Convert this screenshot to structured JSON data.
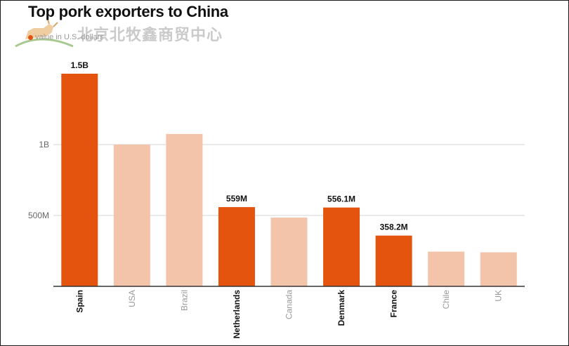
{
  "colors": {
    "highlight": "#e5540f",
    "muted": "#f4c4aa",
    "grid": "#d4d4d4",
    "axis": "#333333",
    "muted_label": "#999999",
    "strong_label": "#111111"
  },
  "watermark": {
    "text": "北京北牧鑫商贸中心"
  },
  "chart_data": {
    "type": "bar",
    "title": "Top pork exporters to China",
    "legend": "value in U.S. dollars",
    "categories": [
      "Spain",
      "USA",
      "Brazil",
      "Netherlands",
      "Canada",
      "Denmark",
      "France",
      "Chile",
      "UK"
    ],
    "values": [
      1500000000,
      1000000000,
      1075000000,
      559000000,
      485000000,
      556100000,
      358200000,
      245000000,
      240000000
    ],
    "highlighted": [
      true,
      false,
      false,
      true,
      false,
      true,
      true,
      false,
      false
    ],
    "data_labels": [
      "1.5B",
      "",
      "",
      "559M",
      "",
      "556.1M",
      "358.2M",
      "",
      ""
    ],
    "y_ticks": [
      500000000,
      1000000000
    ],
    "y_tick_labels": [
      "500M",
      "1B"
    ],
    "ylim": [
      0,
      1500000000
    ],
    "xlabel": "",
    "ylabel": "",
    "grid": true
  }
}
